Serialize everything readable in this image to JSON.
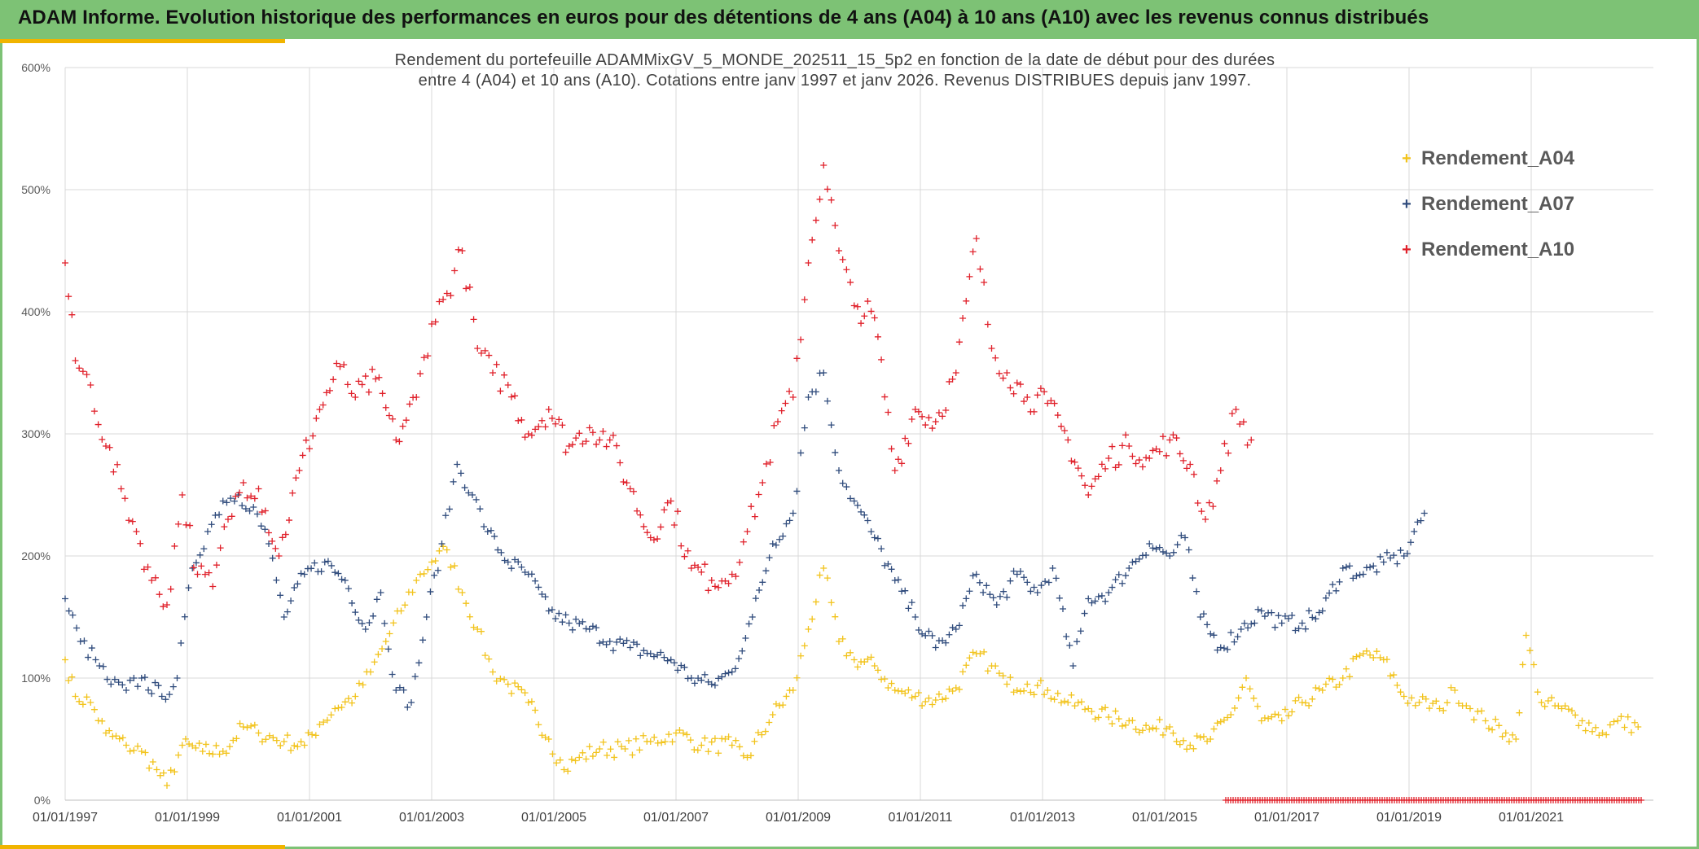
{
  "header": {
    "title": "ADAM Informe. Evolution historique des performances en euros pour des détentions de 4 ans (A04) à 10 ans (A10) avec les revenus connus distribués"
  },
  "colors": {
    "banner": "#7dc275",
    "accent": "#f0b400",
    "series_A04": "#f2c31b",
    "series_A07": "#2f4b7c",
    "series_A10": "#e0202a"
  },
  "chart_data": {
    "type": "scatter",
    "title": "Rendement du portefeuille ADAMMixGV_5_MONDE_202511_15_5p2  en fonction de la date de début pour des durées entre 4 (A04) et 10 ans (A10). Cotations entre janv 1997 et janv 2026. Revenus DISTRIBUES depuis janv 1997.",
    "title_lines": [
      "Rendement du portefeuille ADAMMixGV_5_MONDE_202511_15_5p2  en fonction de la date de début pour des durées",
      "entre 4 (A04) et 10 ans (A10). Cotations entre janv 1997 et janv 2026. Revenus DISTRIBUES depuis janv 1997."
    ],
    "x_type": "date",
    "x_range": [
      "1997-01-01",
      "2022-11-01"
    ],
    "x_ticks": [
      "01/01/1997",
      "01/01/1999",
      "01/01/2001",
      "01/01/2003",
      "01/01/2005",
      "01/01/2007",
      "01/01/2009",
      "01/01/2011",
      "01/01/2013",
      "01/01/2015",
      "01/01/2017",
      "01/01/2019",
      "01/01/2021"
    ],
    "y_range": [
      0,
      6
    ],
    "y_ticks": [
      "0%",
      "100%",
      "200%",
      "300%",
      "400%",
      "500%",
      "600%"
    ],
    "grid": true,
    "legend_position": "top-right",
    "marker": "+",
    "series": [
      {
        "name": "Rendement_A04",
        "color": "#f2c31b",
        "points": [
          [
            "1997-01",
            1.15
          ],
          [
            "1997-03",
            0.85
          ],
          [
            "1997-06",
            0.8
          ],
          [
            "1997-09",
            0.55
          ],
          [
            "1998-01",
            0.45
          ],
          [
            "1998-04",
            0.4
          ],
          [
            "1998-07",
            0.25
          ],
          [
            "1998-09",
            0.12
          ],
          [
            "1998-12",
            0.45
          ],
          [
            "1999-04",
            0.4
          ],
          [
            "1999-08",
            0.4
          ],
          [
            "1999-12",
            0.6
          ],
          [
            "2000-03",
            0.55
          ],
          [
            "2000-08",
            0.48
          ],
          [
            "2000-12",
            0.45
          ],
          [
            "2001-03",
            0.62
          ],
          [
            "2001-06",
            0.75
          ],
          [
            "2001-10",
            0.85
          ],
          [
            "2002-01",
            1.05
          ],
          [
            "2002-04",
            1.3
          ],
          [
            "2002-07",
            1.55
          ],
          [
            "2002-10",
            1.8
          ],
          [
            "2003-01",
            1.95
          ],
          [
            "2003-04",
            2.05
          ],
          [
            "2003-07",
            1.7
          ],
          [
            "2003-10",
            1.4
          ],
          [
            "2004-01",
            1.05
          ],
          [
            "2004-04",
            0.95
          ],
          [
            "2004-08",
            0.8
          ],
          [
            "2004-12",
            0.5
          ],
          [
            "2005-03",
            0.25
          ],
          [
            "2005-06",
            0.35
          ],
          [
            "2005-10",
            0.42
          ],
          [
            "2006-03",
            0.42
          ],
          [
            "2006-08",
            0.48
          ],
          [
            "2007-01",
            0.55
          ],
          [
            "2007-06",
            0.45
          ],
          [
            "2007-12",
            0.45
          ],
          [
            "2008-03",
            0.35
          ],
          [
            "2008-08",
            0.7
          ],
          [
            "2008-12",
            0.9
          ],
          [
            "2009-03",
            1.4
          ],
          [
            "2009-06",
            1.9
          ],
          [
            "2009-09",
            1.3
          ],
          [
            "2009-12",
            1.15
          ],
          [
            "2010-04",
            1.1
          ],
          [
            "2010-08",
            0.9
          ],
          [
            "2010-12",
            0.85
          ],
          [
            "2011-04",
            0.82
          ],
          [
            "2011-08",
            0.92
          ],
          [
            "2011-12",
            1.2
          ],
          [
            "2012-03",
            1.1
          ],
          [
            "2012-06",
            0.95
          ],
          [
            "2012-10",
            0.95
          ],
          [
            "2013-02",
            0.9
          ],
          [
            "2013-06",
            0.8
          ],
          [
            "2013-10",
            0.75
          ],
          [
            "2014-02",
            0.68
          ],
          [
            "2014-06",
            0.65
          ],
          [
            "2014-10",
            0.58
          ],
          [
            "2015-02",
            0.6
          ],
          [
            "2015-06",
            0.45
          ],
          [
            "2015-10",
            0.5
          ],
          [
            "2016-02",
            0.7
          ],
          [
            "2016-05",
            1.0
          ],
          [
            "2016-08",
            0.65
          ],
          [
            "2016-12",
            0.65
          ],
          [
            "2017-04",
            0.8
          ],
          [
            "2017-08",
            0.9
          ],
          [
            "2017-12",
            1.0
          ],
          [
            "2018-04",
            1.2
          ],
          [
            "2018-08",
            1.15
          ],
          [
            "2018-12",
            0.85
          ],
          [
            "2019-03",
            0.8
          ],
          [
            "2019-07",
            0.75
          ],
          [
            "2019-10",
            0.9
          ],
          [
            "2020-01",
            0.75
          ],
          [
            "2020-04",
            0.65
          ],
          [
            "2020-08",
            0.55
          ],
          [
            "2020-10",
            0.5
          ],
          [
            "2020-12",
            1.35
          ],
          [
            "2021-03",
            0.8
          ],
          [
            "2021-07",
            0.75
          ],
          [
            "2021-11",
            0.65
          ],
          [
            "2022-03",
            0.55
          ],
          [
            "2022-06",
            0.65
          ],
          [
            "2022-10",
            0.6
          ]
        ]
      },
      {
        "name": "Rendement_A07",
        "color": "#2f4b7c",
        "points": [
          [
            "1997-01",
            1.65
          ],
          [
            "1997-04",
            1.3
          ],
          [
            "1997-07",
            1.15
          ],
          [
            "1997-10",
            0.95
          ],
          [
            "1998-01",
            0.9
          ],
          [
            "1998-04",
            1.0
          ],
          [
            "1998-08",
            0.85
          ],
          [
            "1998-11",
            1.0
          ],
          [
            "1999-02",
            1.9
          ],
          [
            "1999-05",
            2.2
          ],
          [
            "1999-08",
            2.45
          ],
          [
            "1999-11",
            2.5
          ],
          [
            "2000-02",
            2.4
          ],
          [
            "2000-05",
            2.1
          ],
          [
            "2000-08",
            1.5
          ],
          [
            "2000-12",
            1.85
          ],
          [
            "2001-04",
            1.95
          ],
          [
            "2001-08",
            1.8
          ],
          [
            "2001-12",
            1.4
          ],
          [
            "2002-03",
            1.7
          ],
          [
            "2002-06",
            0.9
          ],
          [
            "2002-09",
            0.8
          ],
          [
            "2002-12",
            1.5
          ],
          [
            "2003-03",
            2.1
          ],
          [
            "2003-06",
            2.75
          ],
          [
            "2003-09",
            2.5
          ],
          [
            "2003-12",
            2.2
          ],
          [
            "2004-04",
            1.95
          ],
          [
            "2004-08",
            1.85
          ],
          [
            "2004-12",
            1.55
          ],
          [
            "2005-04",
            1.45
          ],
          [
            "2005-08",
            1.4
          ],
          [
            "2005-12",
            1.3
          ],
          [
            "2006-04",
            1.25
          ],
          [
            "2006-08",
            1.2
          ],
          [
            "2006-12",
            1.15
          ],
          [
            "2007-04",
            1.0
          ],
          [
            "2007-08",
            0.95
          ],
          [
            "2007-12",
            1.05
          ],
          [
            "2008-04",
            1.5
          ],
          [
            "2008-08",
            2.1
          ],
          [
            "2008-12",
            2.35
          ],
          [
            "2009-03",
            3.3
          ],
          [
            "2009-06",
            3.5
          ],
          [
            "2009-09",
            2.7
          ],
          [
            "2009-12",
            2.45
          ],
          [
            "2010-04",
            2.15
          ],
          [
            "2010-08",
            1.8
          ],
          [
            "2010-12",
            1.5
          ],
          [
            "2011-04",
            1.25
          ],
          [
            "2011-08",
            1.4
          ],
          [
            "2011-12",
            1.85
          ],
          [
            "2012-04",
            1.6
          ],
          [
            "2012-08",
            1.85
          ],
          [
            "2012-12",
            1.7
          ],
          [
            "2013-03",
            1.9
          ],
          [
            "2013-07",
            1.1
          ],
          [
            "2013-10",
            1.65
          ],
          [
            "2014-02",
            1.7
          ],
          [
            "2014-06",
            1.9
          ],
          [
            "2014-10",
            2.1
          ],
          [
            "2015-02",
            2.0
          ],
          [
            "2015-05",
            2.15
          ],
          [
            "2015-08",
            1.5
          ],
          [
            "2015-12",
            1.25
          ],
          [
            "2016-04",
            1.4
          ],
          [
            "2016-08",
            1.55
          ],
          [
            "2016-12",
            1.45
          ],
          [
            "2017-04",
            1.45
          ],
          [
            "2017-08",
            1.55
          ],
          [
            "2017-12",
            1.9
          ],
          [
            "2018-04",
            1.85
          ],
          [
            "2018-08",
            1.95
          ],
          [
            "2018-12",
            2.0
          ],
          [
            "2019-02",
            2.2
          ],
          [
            "2019-04",
            2.35
          ]
        ]
      },
      {
        "name": "Rendement_A10",
        "color": "#e0202a",
        "points": [
          [
            "1997-01",
            4.4
          ],
          [
            "1997-03",
            3.6
          ],
          [
            "1997-06",
            3.4
          ],
          [
            "1997-09",
            2.9
          ],
          [
            "1997-12",
            2.55
          ],
          [
            "1998-03",
            2.2
          ],
          [
            "1998-06",
            1.8
          ],
          [
            "1998-09",
            1.6
          ],
          [
            "1998-12",
            2.5
          ],
          [
            "1999-03",
            1.85
          ],
          [
            "1999-06",
            1.75
          ],
          [
            "1999-09",
            2.3
          ],
          [
            "1999-12",
            2.6
          ],
          [
            "2000-03",
            2.55
          ],
          [
            "2000-07",
            2.0
          ],
          [
            "2000-11",
            2.7
          ],
          [
            "2001-03",
            3.2
          ],
          [
            "2001-07",
            3.55
          ],
          [
            "2001-10",
            3.3
          ],
          [
            "2002-02",
            3.45
          ],
          [
            "2002-06",
            2.95
          ],
          [
            "2002-10",
            3.3
          ],
          [
            "2003-01",
            3.9
          ],
          [
            "2003-04",
            4.15
          ],
          [
            "2003-07",
            4.5
          ],
          [
            "2003-10",
            3.7
          ],
          [
            "2004-01",
            3.5
          ],
          [
            "2004-04",
            3.4
          ],
          [
            "2004-08",
            3.0
          ],
          [
            "2004-12",
            3.2
          ],
          [
            "2005-04",
            2.9
          ],
          [
            "2005-08",
            3.05
          ],
          [
            "2005-12",
            2.95
          ],
          [
            "2006-04",
            2.55
          ],
          [
            "2006-08",
            2.15
          ],
          [
            "2006-12",
            2.45
          ],
          [
            "2007-04",
            1.9
          ],
          [
            "2007-08",
            1.8
          ],
          [
            "2007-12",
            1.85
          ],
          [
            "2008-03",
            2.2
          ],
          [
            "2008-06",
            2.6
          ],
          [
            "2008-09",
            3.1
          ],
          [
            "2008-12",
            3.3
          ],
          [
            "2009-03",
            4.4
          ],
          [
            "2009-06",
            5.2
          ],
          [
            "2009-09",
            4.5
          ],
          [
            "2009-12",
            4.05
          ],
          [
            "2010-04",
            3.95
          ],
          [
            "2010-08",
            2.7
          ],
          [
            "2010-12",
            3.2
          ],
          [
            "2011-04",
            3.1
          ],
          [
            "2011-08",
            3.5
          ],
          [
            "2011-12",
            4.6
          ],
          [
            "2012-03",
            3.7
          ],
          [
            "2012-06",
            3.5
          ],
          [
            "2012-10",
            3.3
          ],
          [
            "2013-02",
            3.25
          ],
          [
            "2013-06",
            2.95
          ],
          [
            "2013-10",
            2.5
          ],
          [
            "2014-02",
            2.8
          ],
          [
            "2014-06",
            2.9
          ],
          [
            "2014-10",
            2.8
          ],
          [
            "2015-02",
            2.95
          ],
          [
            "2015-06",
            2.75
          ],
          [
            "2015-09",
            2.3
          ],
          [
            "2015-12",
            2.7
          ],
          [
            "2016-03",
            3.2
          ],
          [
            "2016-06",
            2.95
          ]
        ]
      }
    ]
  }
}
